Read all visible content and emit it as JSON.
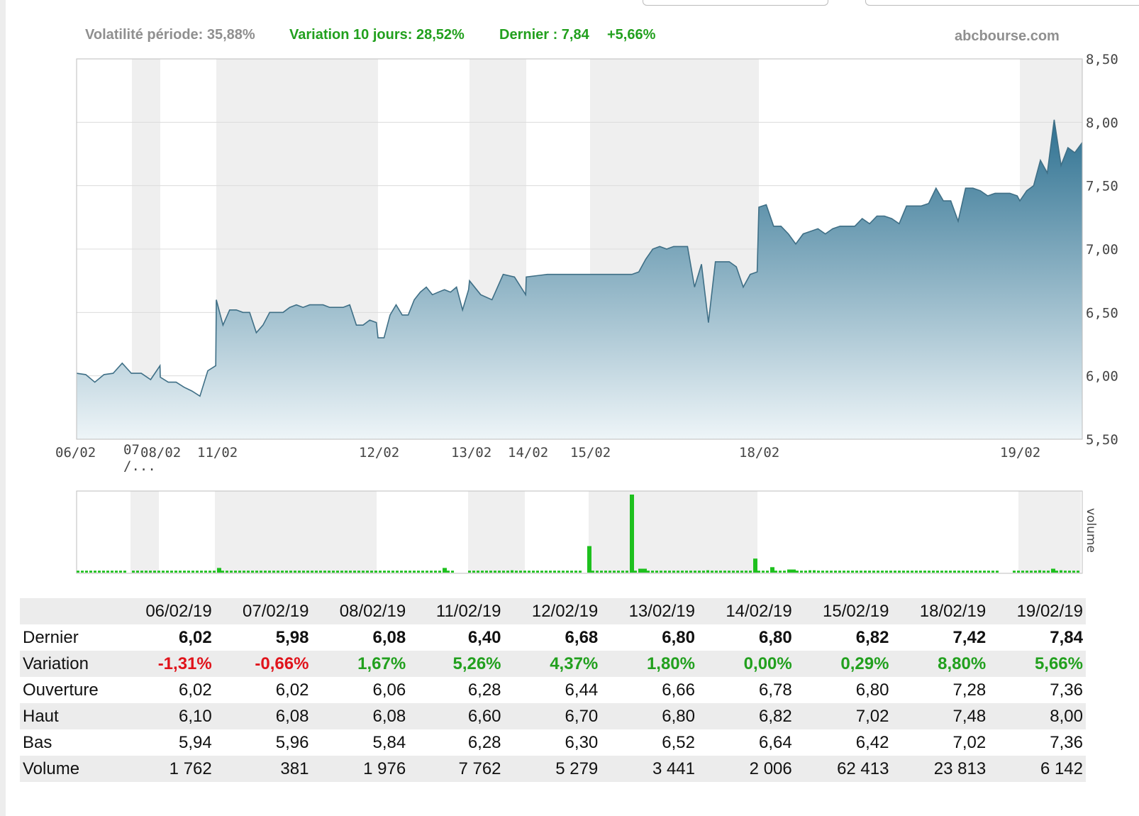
{
  "header": {
    "volatility": "Volatilité période: 35,88%",
    "variation10": "Variation 10 jours: 28,52%",
    "last": "Dernier : 7,84",
    "last_change": "+5,66%",
    "site": "abcbourse.com"
  },
  "colors": {
    "area_top": "#2e7191",
    "area_bottom": "#eef5f8",
    "line": "#3f6f86",
    "volume_bar": "#1ec01e",
    "positive": "#22a01e",
    "negative": "#e0131b",
    "band": "#efefef"
  },
  "chart_data": [
    {
      "type": "area",
      "y_ticks": [
        "8,50",
        "8,00",
        "7,50",
        "7,00",
        "6,50",
        "6,00",
        "5,50"
      ],
      "ylim": [
        5.5,
        8.5
      ],
      "grid": true,
      "x_tick_labels": [
        "06/02",
        "07",
        "/...",
        "08/02",
        "11/02",
        "12/02",
        "13/02",
        "14/02",
        "15/02",
        "18/02",
        "19/02"
      ],
      "x_categories": [
        "06/02",
        "07/02",
        "08/02",
        "11/02",
        "12/02",
        "13/02",
        "14/02",
        "15/02",
        "18/02",
        "19/02"
      ],
      "note_values": "intraday prices, estimated from gridlines, ordered by session",
      "sessions": [
        {
          "date": "06/02",
          "values": [
            6.02,
            6.01,
            5.95,
            6.01,
            6.02,
            6.1,
            6.02
          ]
        },
        {
          "date": "07/02",
          "values": [
            6.02,
            6.02,
            5.97,
            6.08
          ]
        },
        {
          "date": "08/02",
          "values": [
            5.99,
            5.95,
            5.95,
            5.91,
            5.88,
            5.84,
            6.04,
            6.08
          ]
        },
        {
          "date": "11/02",
          "values": [
            6.6,
            6.4,
            6.52,
            6.52,
            6.5,
            6.5,
            6.34,
            6.4,
            6.5,
            6.5,
            6.5,
            6.54,
            6.56,
            6.54,
            6.56,
            6.56,
            6.56,
            6.54,
            6.54,
            6.54,
            6.56,
            6.4,
            6.4,
            6.44,
            6.42
          ]
        },
        {
          "date": "12/02",
          "values": [
            6.3,
            6.3,
            6.48,
            6.56,
            6.48,
            6.48,
            6.6,
            6.66,
            6.7,
            6.64,
            6.66,
            6.68,
            6.66,
            6.7,
            6.52,
            6.68
          ]
        },
        {
          "date": "13/02",
          "values": [
            6.75,
            6.64,
            6.6,
            6.8,
            6.78,
            6.64
          ]
        },
        {
          "date": "14/02",
          "values": [
            6.78,
            6.8,
            6.8,
            6.8
          ]
        },
        {
          "date": "15/02",
          "values": [
            6.8,
            6.8,
            6.8,
            6.8,
            6.8,
            6.8,
            6.8,
            6.82,
            6.92,
            7.0,
            7.02,
            7.0,
            7.02,
            7.02,
            7.02,
            6.7,
            6.88,
            6.42,
            6.9,
            6.9,
            6.9,
            6.86,
            6.7,
            6.8,
            6.82
          ]
        },
        {
          "date": "18/02",
          "values": [
            7.33,
            7.35,
            7.18,
            7.18,
            7.12,
            7.04,
            7.12,
            7.14,
            7.16,
            7.12,
            7.16,
            7.18,
            7.18,
            7.18,
            7.24,
            7.2,
            7.26,
            7.26,
            7.24,
            7.2,
            7.34,
            7.34,
            7.34,
            7.36,
            7.48,
            7.38,
            7.38,
            7.22,
            7.48,
            7.48,
            7.46,
            7.42,
            7.44,
            7.44,
            7.44,
            7.42
          ]
        },
        {
          "date": "19/02",
          "values": [
            7.38,
            7.46,
            7.5,
            7.7,
            7.6,
            8.02,
            7.66,
            7.8,
            7.76,
            7.84
          ]
        }
      ]
    },
    {
      "type": "bar",
      "y_label": "volume",
      "categories": [
        "06/02",
        "07/02",
        "08/02",
        "11/02",
        "12/02",
        "13/02",
        "14/02",
        "15/02",
        "18/02",
        "19/02"
      ],
      "values": [
        1762,
        381,
        1976,
        7762,
        5279,
        3441,
        2006,
        62413,
        23813,
        6142
      ],
      "note_values": "visible tall volume spikes (relative 0-1 of panel): 15/02 early 0.34, 15/02 afternoon 1.0, 18/02 open 0.18"
    }
  ],
  "table": {
    "dates": [
      "06/02/19",
      "07/02/19",
      "08/02/19",
      "11/02/19",
      "12/02/19",
      "13/02/19",
      "14/02/19",
      "15/02/19",
      "18/02/19",
      "19/02/19"
    ],
    "rows": [
      {
        "label": "Dernier",
        "values": [
          "6,02",
          "5,98",
          "6,08",
          "6,40",
          "6,68",
          "6,80",
          "6,80",
          "6,82",
          "7,42",
          "7,84"
        ]
      },
      {
        "label": "Variation",
        "values": [
          "-1,31%",
          "-0,66%",
          "1,67%",
          "5,26%",
          "4,37%",
          "1,80%",
          "0,00%",
          "0,29%",
          "8,80%",
          "5,66%"
        ]
      },
      {
        "label": "Ouverture",
        "values": [
          "6,02",
          "6,02",
          "6,06",
          "6,28",
          "6,44",
          "6,66",
          "6,78",
          "6,80",
          "7,28",
          "7,36"
        ]
      },
      {
        "label": "Haut",
        "values": [
          "6,10",
          "6,08",
          "6,08",
          "6,60",
          "6,70",
          "6,80",
          "6,82",
          "7,02",
          "7,48",
          "8,00"
        ]
      },
      {
        "label": "Bas",
        "values": [
          "5,94",
          "5,96",
          "5,84",
          "6,28",
          "6,30",
          "6,52",
          "6,64",
          "6,42",
          "7,02",
          "7,36"
        ]
      },
      {
        "label": "Volume",
        "values": [
          "1 762",
          "381",
          "1 976",
          "7 762",
          "5 279",
          "3 441",
          "2 006",
          "62 413",
          "23 813",
          "6 142"
        ]
      }
    ]
  }
}
